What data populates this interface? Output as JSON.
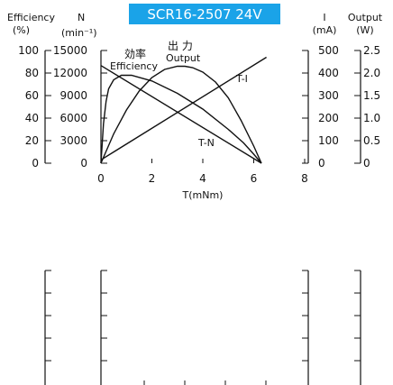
{
  "chart_data": {
    "type": "line",
    "title": "SCR16-2507  24V",
    "title_bg": "#1aa3e8",
    "title_color": "#ffffff",
    "xlabel": "T(mNm)",
    "xticks": [
      "0",
      "2",
      "4",
      "6",
      "8"
    ],
    "xlim": [
      0,
      8
    ],
    "left_axis_headers": [
      {
        "top": "Efficiency",
        "bottom": "(%)"
      },
      {
        "top": "N",
        "bottom": "(min⁻¹)"
      }
    ],
    "right_axis_headers": [
      {
        "top": "I",
        "bottom": "(mA)"
      },
      {
        "top": "Output",
        "bottom": "(W)"
      }
    ],
    "efficiency_ticks": [
      "100",
      "80",
      "60",
      "40",
      "20",
      "0"
    ],
    "speed_ticks": [
      "15000",
      "12000",
      "9000",
      "6000",
      "3000",
      "0"
    ],
    "current_ticks": [
      "500",
      "400",
      "300",
      "200",
      "100",
      "0"
    ],
    "output_ticks": [
      "2.5",
      "2.0",
      "1.5",
      "1.0",
      "0.5",
      "0"
    ],
    "series": [
      {
        "name": "Efficiency",
        "label_cjk": "効率",
        "axis": "efficiency",
        "x": [
          0,
          0.1,
          0.2,
          0.3,
          0.5,
          0.8,
          1.2,
          2,
          3,
          4,
          5,
          5.6,
          6,
          6.3
        ],
        "y": [
          0,
          35,
          55,
          66,
          74,
          78,
          78,
          73,
          62,
          48,
          30,
          18,
          8,
          0
        ]
      },
      {
        "name": "Output",
        "label_cjk": "出 力",
        "axis": "output",
        "x": [
          0,
          0.5,
          1,
          1.5,
          2,
          2.5,
          3,
          3.3,
          3.6,
          4,
          4.5,
          5,
          5.5,
          6,
          6.3
        ],
        "y": [
          0,
          0.65,
          1.18,
          1.6,
          1.9,
          2.08,
          2.15,
          2.15,
          2.12,
          2.02,
          1.8,
          1.45,
          0.95,
          0.38,
          0
        ]
      },
      {
        "name": "T-I",
        "axis": "current",
        "x": [
          0,
          6.5
        ],
        "y": [
          15,
          470
        ]
      },
      {
        "name": "T-N",
        "axis": "speed",
        "x": [
          0,
          6.3
        ],
        "y": [
          13000,
          0
        ]
      }
    ]
  }
}
